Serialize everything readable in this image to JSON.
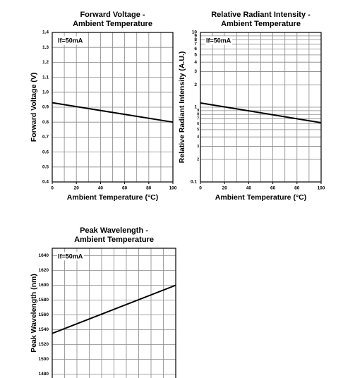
{
  "chart_data": [
    {
      "type": "line",
      "title": [
        "Forward Voltage -",
        "Ambient Temperature"
      ],
      "x_label": "Ambient Temperature (°C)",
      "y_label": "Forward Voltage (V)",
      "annotation": "If=50mA",
      "x": [
        0,
        100
      ],
      "series": [
        {
          "color": "#000000",
          "values": [
            0.93,
            0.8
          ]
        }
      ],
      "xlim": [
        0,
        100
      ],
      "xticks": [
        0,
        20,
        40,
        60,
        80,
        100
      ],
      "ylim": [
        0.4,
        1.4
      ],
      "yticks": [
        0.4,
        0.5,
        0.6,
        0.7,
        0.8,
        0.9,
        {
          "value": 1,
          "label": "1.0"
        },
        1.1,
        1.2,
        1.3,
        1.4
      ],
      "grid": true
    },
    {
      "type": "line",
      "title": [
        "Relative Radiant Intensity -",
        "Ambient Temperature"
      ],
      "x_label": "Ambient Temperature (°C)",
      "y_label": "Relative Radiant Intensity (A.U.)",
      "annotation": "If=50mA",
      "x": [
        0,
        100
      ],
      "series": [
        {
          "color": "#000000",
          "values": [
            1.14,
            0.62
          ]
        }
      ],
      "xlim": [
        0,
        100
      ],
      "xticks": [
        0,
        20,
        40,
        60,
        80,
        100
      ],
      "ylim": [
        0.1,
        10
      ],
      "log_y": true,
      "yticks": [
        0.1,
        {
          "value": 0.2,
          "label": "2"
        },
        {
          "value": 0.3,
          "label": "3"
        },
        {
          "value": 0.4,
          "label": "4"
        },
        {
          "value": 0.5,
          "label": "5"
        },
        {
          "value": 0.6,
          "label": "6"
        },
        {
          "value": 0.7,
          "label": "7"
        },
        {
          "value": 0.8,
          "label": "8"
        },
        {
          "value": 0.9,
          "label": "9"
        },
        1,
        2,
        3,
        4,
        5,
        6,
        7,
        8,
        9,
        10
      ],
      "grid": true
    },
    {
      "type": "line",
      "title": [
        "Peak Wavelength -",
        "Ambient Temperature"
      ],
      "y_label": "Peak Wavelength (nm)",
      "annotation": "If=50mA",
      "x": [
        0,
        100
      ],
      "series": [
        {
          "color": "#000000",
          "values": [
            1535,
            1600
          ]
        }
      ],
      "xlim": [
        0,
        100
      ],
      "ylim": [
        1470,
        1650
      ],
      "yticks": [
        1480,
        1500,
        1520,
        1540,
        1560,
        1580,
        1600,
        1620,
        1640
      ],
      "grid": true
    }
  ]
}
